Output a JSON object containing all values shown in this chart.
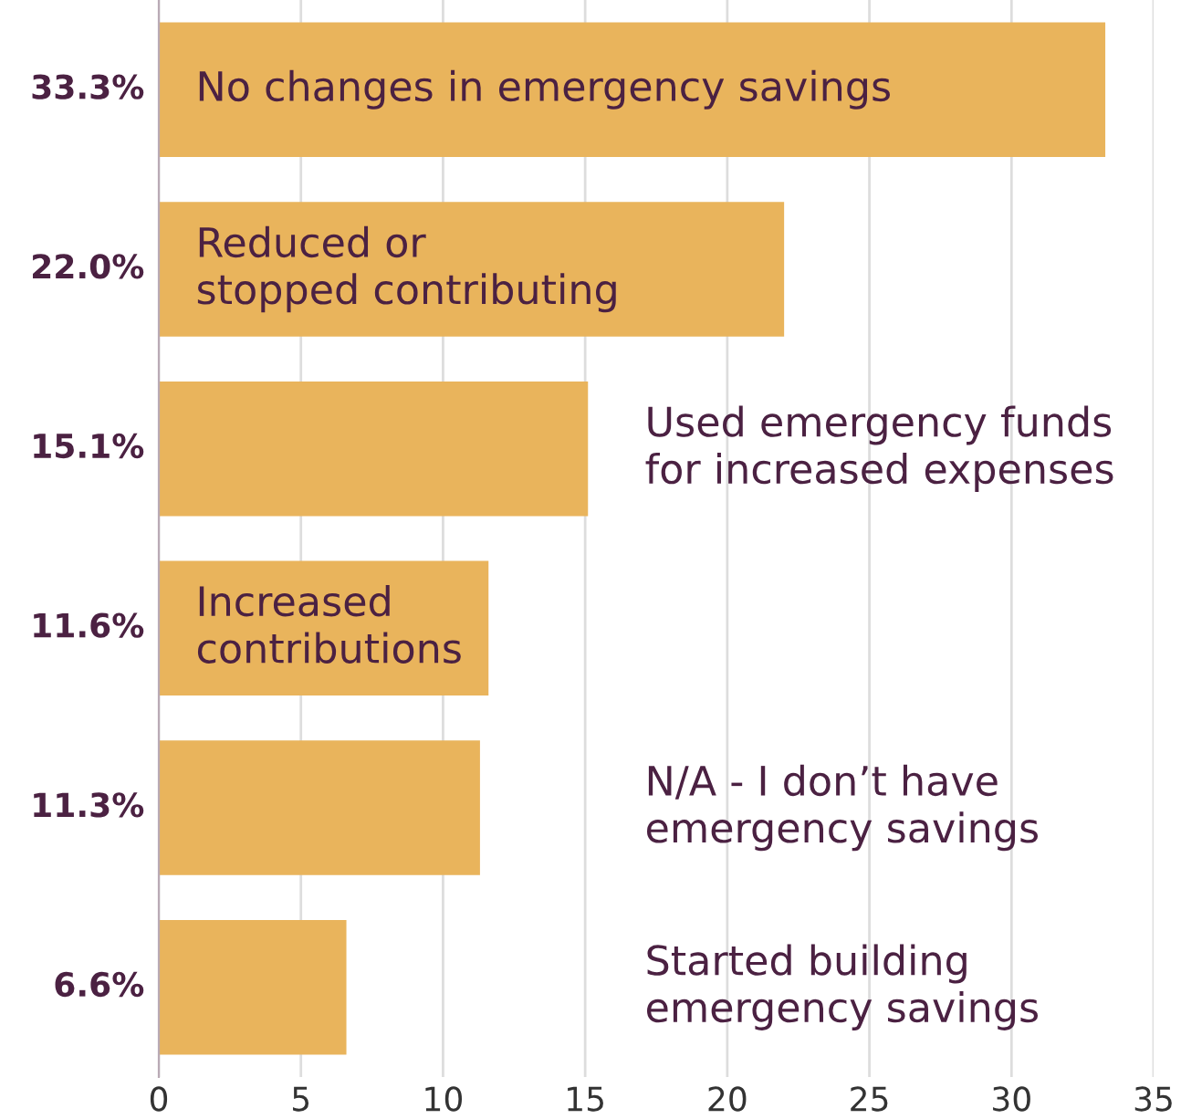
{
  "chart_data": {
    "type": "bar",
    "orientation": "horizontal",
    "categories": [
      "No changes in emergency savings",
      "Reduced or\nstopped contributing",
      "Used emergency funds\nfor increased expenses",
      "Increased\ncontributions",
      "N/A - I don’t have\nemergency savings",
      "Started building\nemergency savings"
    ],
    "values": [
      33.3,
      22.0,
      15.1,
      11.6,
      11.3,
      6.6
    ],
    "value_labels": [
      "33.3%",
      "22.0%",
      "15.1%",
      "11.6%",
      "11.3%",
      "6.6%"
    ],
    "color": "#e9b45c",
    "xlim": [
      0,
      35
    ],
    "xticks": [
      0,
      5,
      10,
      15,
      20,
      25,
      30,
      35
    ],
    "grid": "x"
  }
}
